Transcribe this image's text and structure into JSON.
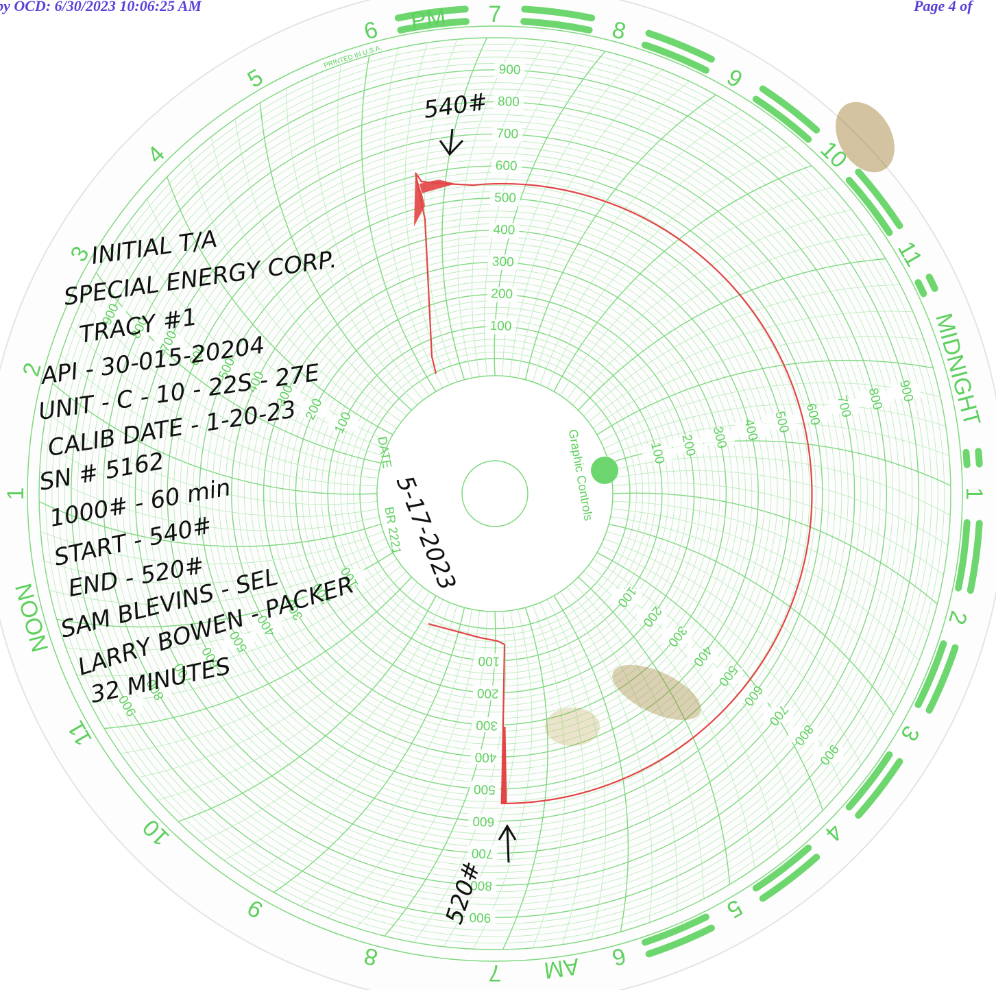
{
  "header": {
    "received": "Received by OCD: 6/30/2023 10:06:25 AM",
    "page": "Page 4 of"
  },
  "chart_paper": {
    "hours": [
      "7",
      "8",
      "9",
      "10",
      "11",
      "MIDNIGHT",
      "1",
      "2",
      "3",
      "4",
      "5",
      "6",
      "7",
      "8",
      "9",
      "10",
      "11",
      "NOON",
      "1",
      "2",
      "3",
      "4",
      "5",
      "6"
    ],
    "pm": "PM",
    "am": "AM",
    "printed": "PRINTED IN U.S.A.",
    "scale": [
      100,
      200,
      300,
      400,
      500,
      600,
      700,
      800,
      900
    ],
    "brand": "Graphic Controls",
    "date_label": "DATE",
    "model": "BR 2221"
  },
  "handwriting": {
    "notes": [
      "INITIAL T/A",
      "SPECIAL ENERGY CORP.",
      "TRACY #1",
      "API - 30-015-20204",
      "UNIT - C - 10 - 22S - 27E",
      "CALIB DATE - 1-20-23",
      "SN # 5162",
      "1000# - 60 min",
      "START - 540#",
      "END - 520#",
      "SAM BLEVINS - SEL",
      "LARRY BOWEN - PACKER",
      "32 MINUTES"
    ],
    "start_mark": "540#",
    "end_mark": "520#",
    "date": "5-17-2023"
  }
}
